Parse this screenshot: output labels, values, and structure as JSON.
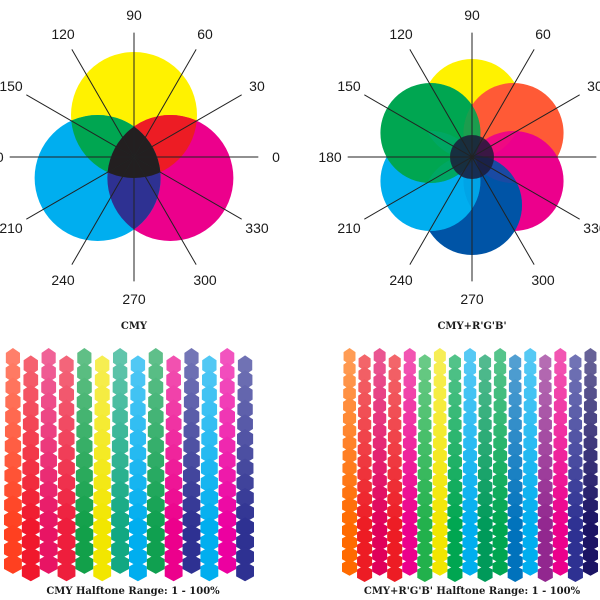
{
  "angle_labels": [
    "0",
    "30",
    "60",
    "90",
    "120",
    "150",
    "180",
    "210",
    "240",
    "270",
    "300",
    "330"
  ],
  "wheels": [
    {
      "caption": "CMY",
      "circles": [
        {
          "name": "yellow",
          "color": "#fff200",
          "angle": 90
        },
        {
          "name": "magenta",
          "color": "#ec008c",
          "angle": 330
        },
        {
          "name": "cyan",
          "color": "#00aeef",
          "angle": 210
        }
      ],
      "overlaps": {
        "yellow_magenta": "#ed1c24",
        "yellow_cyan": "#00a651",
        "cyan_magenta": "#2e3192",
        "center": "#231f20"
      }
    },
    {
      "caption": "CMY+R'G'B'",
      "circles": [
        {
          "name": "yellow",
          "color": "#fff200",
          "angle": 90
        },
        {
          "name": "orange",
          "color": "#ff5a36",
          "angle": 30
        },
        {
          "name": "magenta",
          "color": "#ec008c",
          "angle": 330
        },
        {
          "name": "blue",
          "color": "#0054a6",
          "angle": 270
        },
        {
          "name": "cyan",
          "color": "#00aeef",
          "angle": 210
        },
        {
          "name": "green",
          "color": "#00a651",
          "angle": 150
        }
      ]
    }
  ],
  "halftones": [
    {
      "caption": "CMY Halftone Range: 1 - 100%",
      "columns": [
        "#ff4020",
        "#f0182c",
        "#e81464",
        "#ee1e3c",
        "#12a04a",
        "#f2e600",
        "#12a882",
        "#00aeef",
        "#10a050",
        "#ec008c",
        "#2e3192",
        "#00aeef",
        "#ec00a0",
        "#2e3192"
      ]
    },
    {
      "caption": "CMY+R'G'B' Halftone Range: 1 - 100%",
      "columns": [
        "#ff6a00",
        "#ed1c24",
        "#e0005a",
        "#ed1c24",
        "#ec008c",
        "#22b14c",
        "#f2e600",
        "#00a651",
        "#00aeef",
        "#009a5a",
        "#00a651",
        "#0072bc",
        "#00aeef",
        "#92278f",
        "#ec008c",
        "#2e3192",
        "#1b1464"
      ]
    }
  ]
}
